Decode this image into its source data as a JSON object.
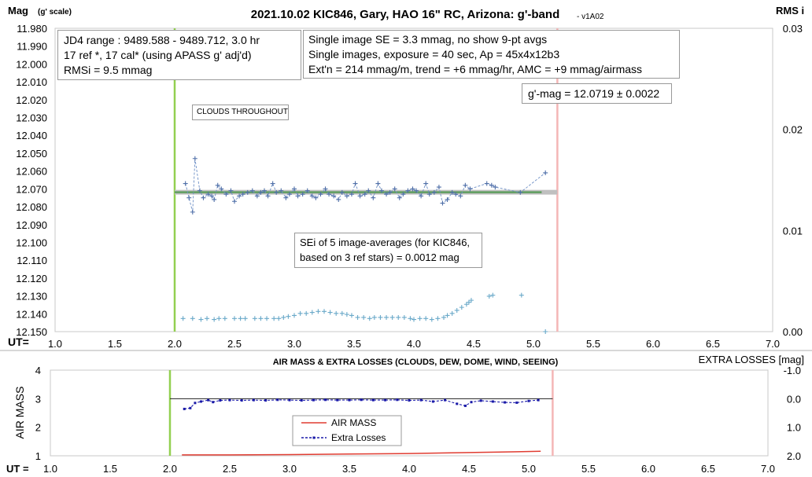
{
  "chart_data": [
    {
      "type": "scatter",
      "title": "2021.10.02 KIC846, Gary, HAO 16\" RC, Arizona: g'-band",
      "version": "- v1A02",
      "ylabel_main": "Mag",
      "ylabel_sub": "(g' scale)",
      "ylabel_right": "RMS i",
      "xlabel": "UT=",
      "xlim": [
        1.0,
        7.0
      ],
      "ylim": [
        11.98,
        12.15
      ],
      "ylim_right": [
        0.0,
        0.03
      ],
      "y_reversed": true,
      "x_ticks": [
        "1.0",
        "1.5",
        "2.0",
        "2.5",
        "3.0",
        "3.5",
        "4.0",
        "4.5",
        "5.0",
        "5.5",
        "6.0",
        "6.5",
        "7.0"
      ],
      "y_ticks": [
        "11.980",
        "11.990",
        "12.000",
        "12.010",
        "12.020",
        "12.030",
        "12.040",
        "12.050",
        "12.060",
        "12.070",
        "12.080",
        "12.090",
        "12.100",
        "12.110",
        "12.120",
        "12.130",
        "12.140",
        "12.150"
      ],
      "y_ticks_right": [
        "0.03",
        "0.02",
        "0.01",
        "0.00"
      ],
      "vertical_lines": [
        {
          "x": 2.0,
          "color": "#92d050"
        },
        {
          "x": 5.2,
          "color": "#f4b6b6"
        }
      ],
      "fit_line": {
        "x": [
          2.0,
          5.2
        ],
        "y": 12.0719
      },
      "series": [
        {
          "marker": "+",
          "color": "#4f6fa8",
          "connect": true,
          "x": [
            2.09,
            2.12,
            2.15,
            2.17,
            2.21,
            2.24,
            2.28,
            2.31,
            2.33,
            2.36,
            2.39,
            2.43,
            2.47,
            2.5,
            2.54,
            2.57,
            2.61,
            2.65,
            2.69,
            2.72,
            2.75,
            2.78,
            2.82,
            2.85,
            2.89,
            2.93,
            2.96,
            3.0,
            3.03,
            3.07,
            3.11,
            3.15,
            3.18,
            3.22,
            3.26,
            3.29,
            3.33,
            3.37,
            3.4,
            3.44,
            3.48,
            3.51,
            3.55,
            3.59,
            3.62,
            3.66,
            3.7,
            3.73,
            3.77,
            3.8,
            3.84,
            3.88,
            3.91,
            3.95,
            3.99,
            4.02,
            4.06,
            4.1,
            4.13,
            4.17,
            4.21,
            4.24,
            4.28,
            4.32,
            4.35,
            4.39,
            4.43,
            4.47,
            4.61,
            4.65,
            4.68,
            4.89,
            5.1
          ],
          "y": [
            12.067,
            12.075,
            12.083,
            12.053,
            12.071,
            12.075,
            12.073,
            12.074,
            12.076,
            12.068,
            12.07,
            12.073,
            12.071,
            12.077,
            12.074,
            12.073,
            12.072,
            12.071,
            12.074,
            12.072,
            12.071,
            12.074,
            12.067,
            12.072,
            12.071,
            12.075,
            12.073,
            12.07,
            12.074,
            12.073,
            12.071,
            12.074,
            12.075,
            12.073,
            12.07,
            12.073,
            12.074,
            12.076,
            12.072,
            12.074,
            12.073,
            12.067,
            12.074,
            12.073,
            12.071,
            12.075,
            12.067,
            12.071,
            12.073,
            12.072,
            12.07,
            12.075,
            12.073,
            12.071,
            12.07,
            12.071,
            12.074,
            12.067,
            12.073,
            12.072,
            12.069,
            12.078,
            12.076,
            12.072,
            12.073,
            12.074,
            12.068,
            12.07,
            12.067,
            12.068,
            12.069,
            12.072,
            12.061
          ]
        },
        {
          "name": "RMS i",
          "marker": "+",
          "color": "#6aa9c9",
          "connect": false,
          "axis": "right",
          "x": [
            2.07,
            2.15,
            2.22,
            2.27,
            2.33,
            2.37,
            2.42,
            2.5,
            2.55,
            2.59,
            2.67,
            2.72,
            2.77,
            2.83,
            2.87,
            2.91,
            2.95,
            3.0,
            3.05,
            3.1,
            3.15,
            3.2,
            3.25,
            3.3,
            3.35,
            3.4,
            3.44,
            3.48,
            3.53,
            3.58,
            3.63,
            3.67,
            3.72,
            3.77,
            3.82,
            3.87,
            3.92,
            3.97,
            4.0,
            4.05,
            4.1,
            4.15,
            4.2,
            4.25,
            4.28,
            4.32,
            4.36,
            4.4,
            4.44,
            4.46,
            4.48,
            4.63,
            4.66,
            4.9,
            5.1
          ],
          "y": [
            0.0013,
            0.0013,
            0.0012,
            0.0013,
            0.0012,
            0.0013,
            0.0013,
            0.0013,
            0.0013,
            0.0013,
            0.0013,
            0.0013,
            0.0013,
            0.0013,
            0.0013,
            0.0014,
            0.0015,
            0.0016,
            0.0018,
            0.0018,
            0.0019,
            0.002,
            0.002,
            0.0019,
            0.0018,
            0.0018,
            0.0017,
            0.0016,
            0.0014,
            0.0014,
            0.0013,
            0.0014,
            0.0014,
            0.0014,
            0.0014,
            0.0014,
            0.0014,
            0.0013,
            0.0012,
            0.0013,
            0.0013,
            0.0012,
            0.0013,
            0.0014,
            0.0016,
            0.0018,
            0.0021,
            0.0024,
            0.0027,
            0.0029,
            0.0031,
            0.0035,
            0.0036,
            0.0036,
            0.0
          ]
        }
      ],
      "info_boxes": [
        {
          "lines": [
            "JD4 range : 9489.588 - 9489.712,  3.0  hr",
            "17 ref *, 17 cal* (using APASS g' adj'd)",
            "RMSi = 9.5 mmag"
          ]
        },
        {
          "lines": [
            "Single image SE = 3.3 mmag, no show  9-pt avgs",
            "Single images, exposure = 40 sec, Ap = 45x4x12b3",
            "Ext'n = 214 mmag/m, trend = +6 mmag/hr, AMC = +9 mmag/airmass"
          ]
        },
        {
          "lines": [
            "g'-mag = 12.0719 ± 0.0022"
          ]
        },
        {
          "lines": [
            "CLOUDS THROUGHOUT"
          ]
        },
        {
          "lines": [
            "SEi of 5 image-averages (for KIC846,",
            "based on 3 ref stars) = 0.0012 mag"
          ]
        }
      ]
    },
    {
      "type": "line",
      "title": "AIR MASS & EXTRA LOSSES (CLOUDS, DEW, DOME, WIND, SEEING)",
      "ylabel": "AIR MASS",
      "ylabel_right": "EXTRA LOSSES [mag]",
      "xlabel": "UT =",
      "xlim": [
        1.0,
        7.0
      ],
      "ylim": [
        1,
        4
      ],
      "ylim_right": [
        2.0,
        -1.0
      ],
      "x_ticks": [
        "1.0",
        "1.5",
        "2.0",
        "2.5",
        "3.0",
        "3.5",
        "4.0",
        "4.5",
        "5.0",
        "5.5",
        "6.0",
        "6.5",
        "7.0"
      ],
      "y_ticks": [
        "1",
        "2",
        "3",
        "4"
      ],
      "y_ticks_right": [
        "-1.0",
        "0.0",
        "1.0",
        "2.0"
      ],
      "vertical_lines": [
        {
          "x": 2.0,
          "color": "#92d050"
        },
        {
          "x": 5.2,
          "color": "#f4b6b6"
        }
      ],
      "reference_line": {
        "x": [
          2.0,
          5.2
        ],
        "y_right": 0.0
      },
      "series": [
        {
          "name": "AIR MASS",
          "color": "#e03c31",
          "style": "solid",
          "x": [
            2.1,
            2.5,
            3.0,
            3.5,
            4.0,
            4.3,
            4.6,
            4.9,
            5.1
          ],
          "y": [
            1.03,
            1.03,
            1.04,
            1.06,
            1.08,
            1.1,
            1.12,
            1.14,
            1.16
          ]
        },
        {
          "name": "Extra Losses",
          "color": "#1a1aa8",
          "style": "dashed",
          "axis": "right",
          "x": [
            2.12,
            2.17,
            2.21,
            2.26,
            2.32,
            2.36,
            2.42,
            2.5,
            2.6,
            2.7,
            2.8,
            2.9,
            3.0,
            3.1,
            3.2,
            3.3,
            3.4,
            3.5,
            3.6,
            3.7,
            3.8,
            3.9,
            4.0,
            4.1,
            4.2,
            4.3,
            4.4,
            4.47,
            4.52,
            4.6,
            4.7,
            4.8,
            4.9,
            5.0,
            5.08
          ],
          "y": [
            0.36,
            0.33,
            0.15,
            0.1,
            0.05,
            0.12,
            0.06,
            0.05,
            0.06,
            0.05,
            0.06,
            0.04,
            0.05,
            0.06,
            0.05,
            0.04,
            0.05,
            0.05,
            0.04,
            0.05,
            0.05,
            0.04,
            0.06,
            0.05,
            0.1,
            0.05,
            0.18,
            0.25,
            0.12,
            0.07,
            0.1,
            0.13,
            0.14,
            0.08,
            0.05
          ]
        }
      ]
    }
  ]
}
